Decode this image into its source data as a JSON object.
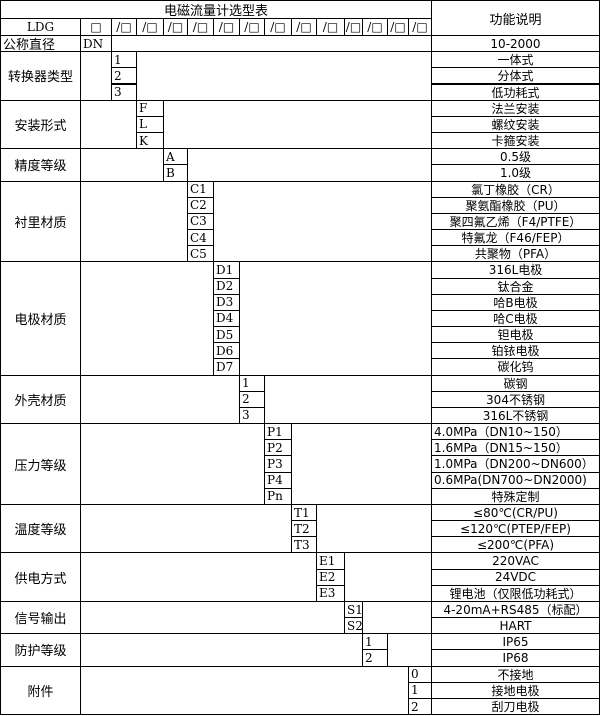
{
  "title": "电磁流量计选型表",
  "function_header": "功能说明",
  "model_prefix": "LDG",
  "first_slot": "□",
  "slot": "/□",
  "nominal": {
    "label": "公称直径",
    "code": "DN",
    "desc": "10-2000"
  },
  "groups": [
    {
      "label": "转换器类型",
      "codes": [
        "1",
        "2",
        "3"
      ],
      "descs": [
        "一体式",
        "分体式",
        "低功耗式"
      ]
    },
    {
      "label": "安装形式",
      "codes": [
        "F",
        "L",
        "K"
      ],
      "descs": [
        "法兰安装",
        "螺纹安装",
        "卡箍安装"
      ]
    },
    {
      "label": "精度等级",
      "codes": [
        "A",
        "B"
      ],
      "descs": [
        "0.5级",
        "1.0级"
      ]
    },
    {
      "label": "衬里材质",
      "codes": [
        "C1",
        "C2",
        "C3",
        "C4",
        "C5"
      ],
      "descs": [
        "氯丁橡胶（CR）",
        "聚氨酯橡胶（PU）",
        "聚四氟乙烯（F4/PTFE）",
        "特氟龙（F46/FEP）",
        "共聚物（PFA）"
      ]
    },
    {
      "label": "电极材质",
      "codes": [
        "D1",
        "D2",
        "D3",
        "D4",
        "D5",
        "D6",
        "D7"
      ],
      "descs": [
        "316L电极",
        "钛合金",
        "哈B电极",
        "哈C电极",
        "钽电极",
        "铂铱电极",
        "碳化钨"
      ]
    },
    {
      "label": "外壳材质",
      "codes": [
        "1",
        "2",
        "3"
      ],
      "descs": [
        "碳钢",
        "304不锈钢",
        "316L不锈钢"
      ]
    },
    {
      "label": "压力等级",
      "codes": [
        "P1",
        "P2",
        "P3",
        "P4",
        "Pn"
      ],
      "descs": [
        "4.0MPa（DN10~150）",
        "1.6MPa（DN15~150）",
        "1.0MPa（DN200~DN600）",
        "0.6MPa(DN700~DN2000)",
        "特殊定制"
      ],
      "left_descs": [
        true,
        true,
        true,
        true,
        false
      ]
    },
    {
      "label": "温度等级",
      "codes": [
        "T1",
        "T2",
        "T3"
      ],
      "descs": [
        "≤80℃(CR/PU)",
        "≤120℃(PTEP/FEP)",
        "≤200℃(PFA)"
      ]
    },
    {
      "label": "供电方式",
      "codes": [
        "E1",
        "E2",
        "E3"
      ],
      "descs": [
        "220VAC",
        "24VDC",
        "锂电池（仅限低功耗式）"
      ]
    },
    {
      "label": "信号输出",
      "codes": [
        "S1",
        "S2"
      ],
      "descs": [
        "4-20mA+RS485（标配）",
        "HART"
      ]
    },
    {
      "label": "防护等级",
      "codes": [
        "1",
        "2"
      ],
      "descs": [
        "IP65",
        "IP68"
      ]
    },
    {
      "label": "附件",
      "codes": [
        "0",
        "1",
        "2"
      ],
      "descs": [
        "不接地",
        "接地电极",
        "刮刀电极"
      ]
    }
  ]
}
